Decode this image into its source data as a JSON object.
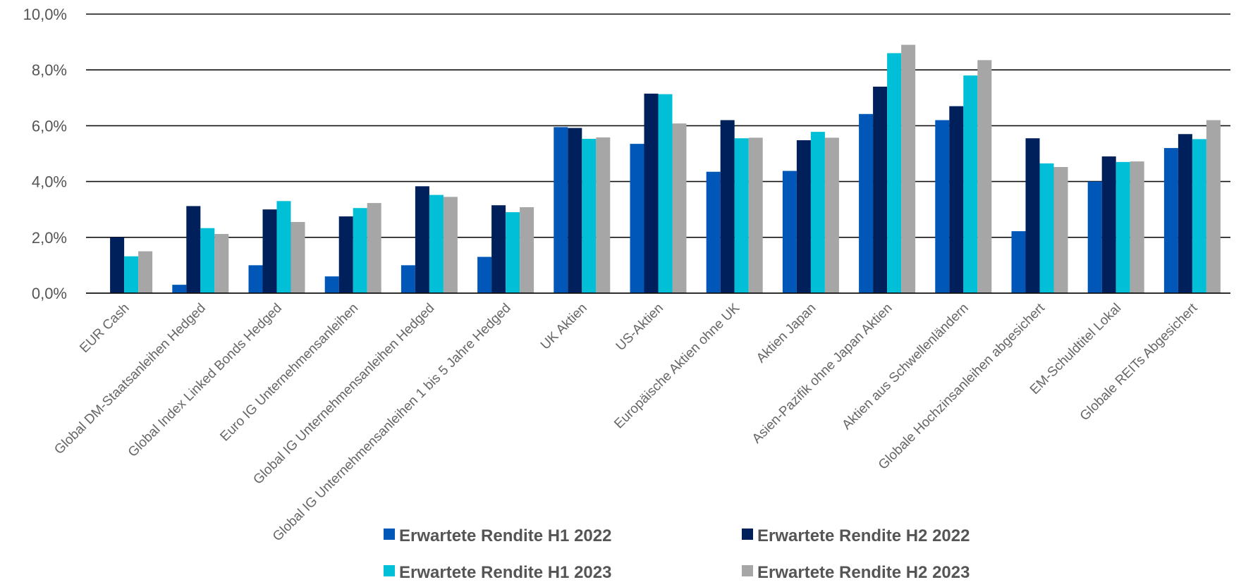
{
  "chart_data": {
    "type": "bar",
    "title": "",
    "xlabel": "",
    "ylabel": "",
    "ylim": [
      0,
      10
    ],
    "y_ticks": [
      "0,0%",
      "2,0%",
      "4,0%",
      "6,0%",
      "8,0%",
      "10,0%"
    ],
    "grid": "horizontal",
    "legend_position": "bottom",
    "categories": [
      "EUR Cash",
      "Global DM-Staatsanleihen Hedged",
      "Global Index Linked Bonds Hedged",
      "Euro IG Unternehmensanleihen",
      "Global IG Unternehmensanleihen Hedged",
      "Global IG Unternehmensanleihen 1 bis 5 Jahre Hedged",
      "UK Aktien",
      "US-Aktien",
      "Europäische Aktien ohne UK",
      "Aktien Japan",
      "Asien-Pazifik ohne Japan Aktien",
      "Aktien aus Schwellenländern",
      "Globale Hochzinsanleihen abgesichert",
      "EM-Schuldtitel Lokal",
      "Globale REITs Abgesichert"
    ],
    "series": [
      {
        "name": "Erwartete Rendite H1 2022",
        "color": "#0057b8",
        "values": [
          0.0,
          0.3,
          1.0,
          0.6,
          1.0,
          1.3,
          5.95,
          5.35,
          4.35,
          4.38,
          6.42,
          6.2,
          2.22,
          4.0,
          5.2
        ]
      },
      {
        "name": "Erwartete Rendite H2 2022",
        "color": "#00205b",
        "values": [
          2.0,
          3.12,
          3.0,
          2.75,
          3.83,
          3.15,
          5.92,
          7.15,
          6.2,
          5.48,
          7.4,
          6.7,
          5.55,
          4.9,
          5.7
        ]
      },
      {
        "name": "Erwartete Rendite H1 2023",
        "color": "#00bfd6",
        "values": [
          1.32,
          2.33,
          3.3,
          3.05,
          3.52,
          2.9,
          5.53,
          7.13,
          5.55,
          5.78,
          8.6,
          7.8,
          4.65,
          4.7,
          5.52
        ]
      },
      {
        "name": "Erwartete Rendite H2 2023",
        "color": "#a6a6a6",
        "values": [
          1.5,
          2.12,
          2.55,
          3.23,
          3.45,
          3.08,
          5.58,
          6.08,
          5.57,
          5.57,
          8.9,
          8.35,
          4.52,
          4.72,
          6.2
        ]
      }
    ]
  }
}
